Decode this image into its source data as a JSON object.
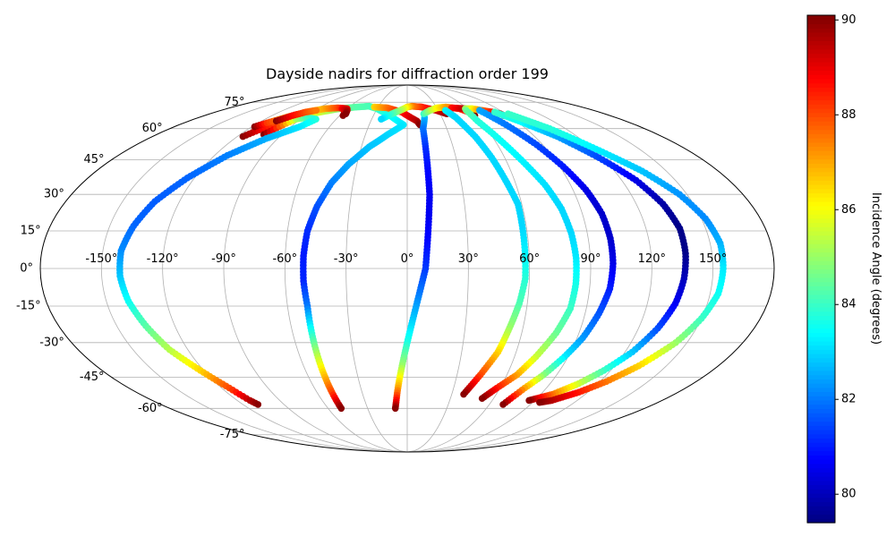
{
  "chart_data": {
    "type": "scatter",
    "projection": "mollweide",
    "title": "Dayside nadirs for diffraction order 199",
    "x_unit": "longitude (degrees)",
    "y_unit": "latitude (degrees)",
    "xlim": [
      -180,
      180
    ],
    "ylim": [
      -90,
      90
    ],
    "grid": true,
    "lon_ticks": [
      {
        "value": -150,
        "label": "-150°"
      },
      {
        "value": -120,
        "label": "-120°"
      },
      {
        "value": -90,
        "label": "-90°"
      },
      {
        "value": -60,
        "label": "-60°"
      },
      {
        "value": -30,
        "label": "-30°"
      },
      {
        "value": 0,
        "label": "0°"
      },
      {
        "value": 30,
        "label": "30°"
      },
      {
        "value": 60,
        "label": "60°"
      },
      {
        "value": 90,
        "label": "90°"
      },
      {
        "value": 120,
        "label": "120°"
      },
      {
        "value": 150,
        "label": "150°"
      }
    ],
    "lat_ticks": [
      {
        "value": 75,
        "label": "75°"
      },
      {
        "value": 60,
        "label": "60°"
      },
      {
        "value": 45,
        "label": "45°"
      },
      {
        "value": 30,
        "label": "30°"
      },
      {
        "value": 15,
        "label": "15°"
      },
      {
        "value": 0,
        "label": "0°"
      },
      {
        "value": -15,
        "label": "-15°"
      },
      {
        "value": -30,
        "label": "-30°"
      },
      {
        "value": -45,
        "label": "-45°"
      },
      {
        "value": -60,
        "label": "-60°"
      },
      {
        "value": -75,
        "label": "-75°"
      }
    ],
    "colorbar": {
      "label": "Incidence Angle (degrees)",
      "colormap": "jet",
      "range": [
        79.4,
        90.1
      ],
      "ticks": [
        {
          "value": 80,
          "label": "80"
        },
        {
          "value": 82,
          "label": "82"
        },
        {
          "value": 84,
          "label": "84"
        },
        {
          "value": 86,
          "label": "86"
        },
        {
          "value": 88,
          "label": "88"
        },
        {
          "value": 90,
          "label": "90"
        }
      ]
    },
    "series": [
      {
        "points": [
          [
            -116,
            56,
            90.0
          ],
          [
            -110,
            60,
            88.8
          ],
          [
            -101,
            65,
            87.5
          ],
          [
            -88,
            68,
            86.0
          ],
          [
            -68,
            71,
            84.8
          ],
          [
            -52,
            72,
            84.3
          ],
          [
            -40,
            72.5,
            84.2
          ],
          [
            -30,
            71,
            84.0
          ],
          [
            -15,
            67,
            83.6
          ],
          [
            -3,
            62,
            83.2
          ],
          [
            -14,
            57,
            83.0
          ],
          [
            -25,
            51,
            82.8
          ],
          [
            -35,
            43,
            82.5
          ],
          [
            -42,
            35,
            82.1
          ],
          [
            -47,
            25,
            81.6
          ],
          [
            -50,
            15,
            81.2
          ],
          [
            -51,
            5,
            81.0
          ],
          [
            -51,
            -5,
            81.1
          ],
          [
            -50,
            -15,
            82.0
          ],
          [
            -50,
            -25,
            83.6
          ],
          [
            -50,
            -35,
            85.2
          ],
          [
            -50,
            -45,
            86.8
          ],
          [
            -50,
            -52,
            88.0
          ],
          [
            -50,
            -58,
            89.5
          ],
          [
            -50,
            -60,
            90.0
          ]
        ]
      },
      {
        "points": [
          [
            -103,
            57,
            90.0
          ],
          [
            -98,
            62,
            87.5
          ],
          [
            -94,
            65,
            85.3
          ],
          [
            -87,
            66,
            84.2
          ],
          [
            -77,
            65,
            83.8
          ],
          [
            -83,
            61,
            83.2
          ],
          [
            -98,
            55,
            82.6
          ],
          [
            -112,
            47,
            82.1
          ],
          [
            -124,
            37,
            81.8
          ],
          [
            -133,
            27,
            81.7
          ],
          [
            -138,
            17,
            81.8
          ],
          [
            -141,
            7,
            82.2
          ],
          [
            -141,
            -3,
            82.8
          ],
          [
            -139,
            -13,
            83.5
          ],
          [
            -135,
            -23,
            84.3
          ],
          [
            -130,
            -33,
            85.3
          ],
          [
            -122,
            -42,
            86.5
          ],
          [
            -115,
            -50,
            88.0
          ],
          [
            -111,
            -56,
            89.5
          ],
          [
            -109,
            -58,
            90.0
          ]
        ]
      },
      {
        "points": [
          [
            -118,
            61,
            90.0
          ],
          [
            -113,
            63,
            88.2
          ],
          [
            -105,
            66,
            87.0
          ],
          [
            -95,
            69,
            86.2
          ],
          [
            -82,
            71,
            87.0
          ],
          [
            -70,
            71.5,
            88.0
          ],
          [
            -60,
            71,
            89.0
          ],
          [
            -57,
            67,
            90.0
          ]
        ]
      },
      {
        "points": [
          [
            -108,
            64,
            90.0
          ],
          [
            -102,
            67,
            88.8
          ],
          [
            -95,
            69,
            88.0
          ],
          [
            -88,
            70,
            87.5
          ]
        ]
      },
      {
        "points": [
          [
            -65,
            71,
            88.8
          ],
          [
            -58,
            70,
            89.5
          ],
          [
            -56,
            68,
            90.0
          ]
        ]
      },
      {
        "points": [
          [
            -34,
            72,
            86.5
          ],
          [
            -20,
            71.5,
            87.5
          ],
          [
            -5,
            69,
            88.5
          ],
          [
            8,
            64,
            89.5
          ],
          [
            10,
            62,
            90.0
          ]
        ]
      },
      {
        "points": [
          [
            36,
            68,
            90.0
          ],
          [
            28,
            70,
            89.3
          ],
          [
            15,
            72,
            88.5
          ],
          [
            5,
            72.5,
            87.5
          ],
          [
            0,
            72,
            86.5
          ],
          [
            -5,
            70.5,
            85.5
          ],
          [
            -14,
            68,
            84.2
          ],
          [
            -22,
            65,
            83.0
          ]
        ]
      },
      {
        "points": [
          [
            15,
            66,
            82.8
          ],
          [
            12,
            60,
            82.0
          ],
          [
            12,
            50,
            81.2
          ],
          [
            12,
            40,
            80.8
          ],
          [
            12,
            30,
            80.6
          ],
          [
            11,
            20,
            80.6
          ],
          [
            10,
            10,
            80.8
          ],
          [
            9,
            0,
            81.3
          ],
          [
            6,
            -10,
            82.0
          ],
          [
            3,
            -20,
            82.8
          ],
          [
            0,
            -30,
            83.7
          ],
          [
            -3,
            -40,
            85.0
          ],
          [
            -6,
            -50,
            87.0
          ],
          [
            -8,
            -57,
            89.0
          ],
          [
            -9,
            -60,
            90.0
          ]
        ]
      },
      {
        "points": [
          [
            15,
            68,
            84.0
          ],
          [
            22,
            70,
            85.0
          ],
          [
            30,
            71.5,
            86.0
          ],
          [
            40,
            72,
            87.0
          ],
          [
            52,
            71,
            88.0
          ],
          [
            58,
            69,
            89.0
          ],
          [
            60,
            67,
            90.0
          ]
        ]
      },
      {
        "points": [
          [
            45,
            71.5,
            88.5
          ],
          [
            58,
            71,
            89.5
          ],
          [
            62,
            70,
            90.0
          ]
        ]
      },
      {
        "points": [
          [
            37,
            70,
            83.3
          ],
          [
            42,
            66,
            83.0
          ],
          [
            48,
            56,
            83.0
          ],
          [
            52,
            46,
            83.0
          ],
          [
            55,
            36,
            83.0
          ],
          [
            58,
            26,
            83.0
          ],
          [
            58,
            16,
            83.0
          ],
          [
            58,
            6,
            83.3
          ],
          [
            58,
            -4,
            83.8
          ],
          [
            56,
            -14,
            84.2
          ],
          [
            53,
            -24,
            85.0
          ],
          [
            50,
            -34,
            86.5
          ],
          [
            44,
            -44,
            88.0
          ],
          [
            40,
            -50,
            89.3
          ],
          [
            38,
            -53,
            90.0
          ]
        ]
      },
      {
        "points": [
          [
            58,
            71,
            85.0
          ],
          [
            65,
            71,
            86.0
          ],
          [
            72,
            70,
            87.5
          ],
          [
            80,
            69,
            88.5
          ],
          [
            85,
            68,
            89.5
          ],
          [
            86,
            67,
            90.0
          ]
        ]
      },
      {
        "points": [
          [
            57,
            70,
            84.5
          ],
          [
            58,
            64,
            83.8
          ],
          [
            64,
            54,
            83.5
          ],
          [
            70,
            44,
            83.3
          ],
          [
            76,
            34,
            83.1
          ],
          [
            80,
            24,
            83.0
          ],
          [
            82,
            14,
            83.0
          ],
          [
            83,
            4,
            83.2
          ],
          [
            83,
            -6,
            83.6
          ],
          [
            82,
            -16,
            84.0
          ],
          [
            78,
            -26,
            84.5
          ],
          [
            72,
            -36,
            85.5
          ],
          [
            66,
            -44,
            87.0
          ],
          [
            58,
            -50,
            88.5
          ],
          [
            52,
            -55,
            90.0
          ]
        ]
      },
      {
        "points": [
          [
            70,
            70,
            82.5
          ],
          [
            78,
            62,
            82.0
          ],
          [
            86,
            52,
            81.5
          ],
          [
            92,
            42,
            81.0
          ],
          [
            97,
            32,
            80.5
          ],
          [
            100,
            22,
            80.2
          ],
          [
            101,
            12,
            80.2
          ],
          [
            101,
            2,
            80.5
          ],
          [
            100,
            -8,
            81.0
          ],
          [
            97,
            -18,
            81.6
          ],
          [
            93,
            -28,
            82.3
          ],
          [
            88,
            -36,
            83.2
          ],
          [
            82,
            -44,
            84.8
          ],
          [
            76,
            -50,
            87.0
          ],
          [
            72,
            -55,
            88.8
          ],
          [
            70,
            -58,
            90.0
          ]
        ]
      },
      {
        "points": [
          [
            82,
            69,
            84.0
          ],
          [
            92,
            64,
            83.5
          ],
          [
            106,
            56,
            82.5
          ],
          [
            118,
            46,
            81.5
          ],
          [
            128,
            36,
            80.5
          ],
          [
            134,
            26,
            79.8
          ],
          [
            137,
            16,
            79.5
          ],
          [
            137,
            6,
            79.5
          ],
          [
            136,
            -4,
            80.0
          ],
          [
            134,
            -14,
            80.6
          ],
          [
            130,
            -24,
            81.5
          ],
          [
            124,
            -34,
            82.8
          ],
          [
            116,
            -42,
            84.0
          ],
          [
            108,
            -48,
            85.5
          ],
          [
            98,
            -53,
            87.5
          ],
          [
            90,
            -55,
            89.0
          ],
          [
            86,
            -56,
            90.0
          ]
        ]
      },
      {
        "points": [
          [
            92,
            68,
            84.0
          ],
          [
            108,
            60,
            83.8
          ],
          [
            122,
            50,
            83.3
          ],
          [
            136,
            40,
            82.8
          ],
          [
            146,
            30,
            82.3
          ],
          [
            152,
            20,
            82.2
          ],
          [
            155,
            10,
            82.6
          ],
          [
            155,
            0,
            83.2
          ],
          [
            154,
            -10,
            83.5
          ],
          [
            150,
            -20,
            84.0
          ],
          [
            144,
            -30,
            85.0
          ],
          [
            134,
            -40,
            86.5
          ],
          [
            124,
            -47,
            87.5
          ],
          [
            114,
            -52,
            88.5
          ],
          [
            102,
            -56,
            89.5
          ],
          [
            95,
            -57,
            90.0
          ]
        ]
      }
    ]
  }
}
